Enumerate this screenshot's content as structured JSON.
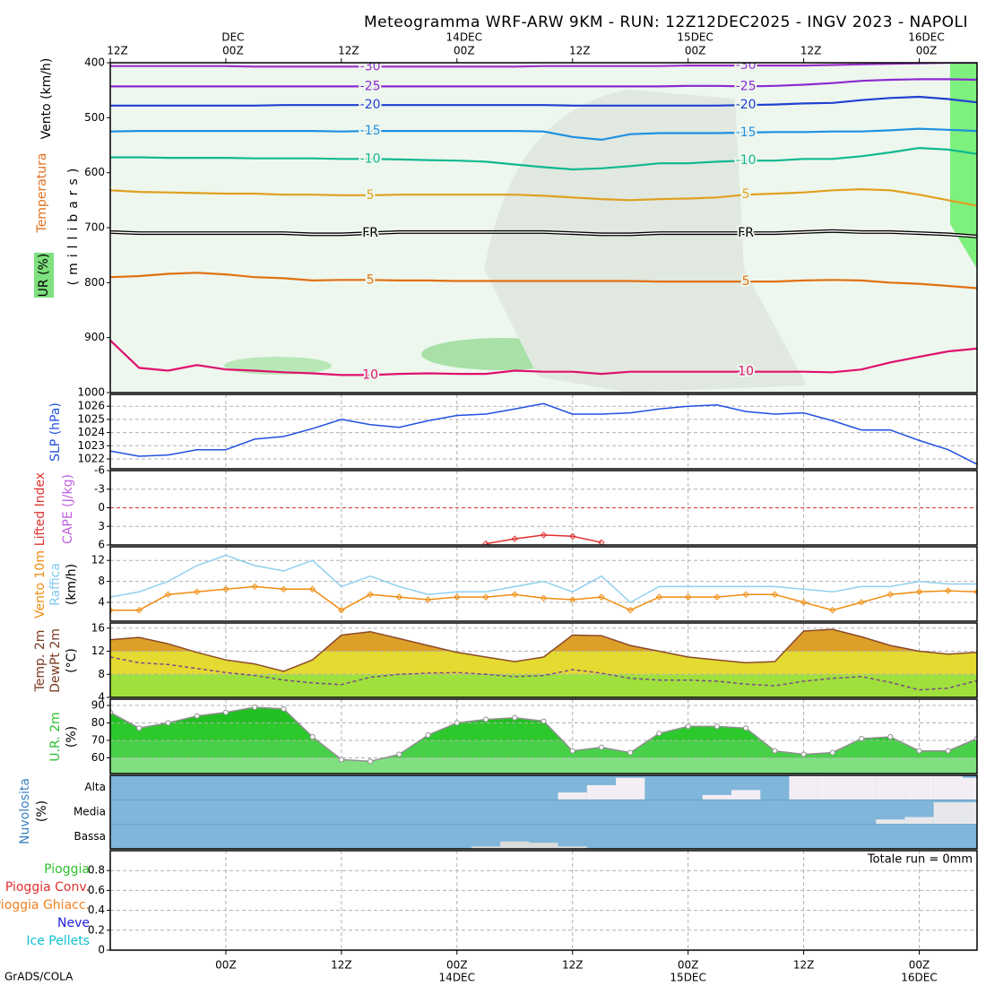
{
  "title": "Meteogramma WRF-ARW 9KM - RUN: 12Z12DEC2025 - INGV 2023 - NAPOLI",
  "footer": "GrADS/COLA",
  "time": {
    "x": [
      0,
      3,
      6,
      9,
      12,
      15,
      18,
      21,
      24,
      27,
      30,
      33,
      36,
      39,
      42,
      45,
      48,
      51,
      54,
      57,
      60,
      63,
      66,
      69,
      72,
      75,
      78,
      81,
      84,
      87,
      90
    ],
    "xlim": [
      0,
      90
    ],
    "xticks": [
      {
        "value": 12,
        "label": "00Z"
      },
      {
        "value": 24,
        "label": "12Z"
      },
      {
        "value": 36,
        "label": "00Z",
        "date": "14DEC"
      },
      {
        "value": 48,
        "label": "12Z"
      },
      {
        "value": 60,
        "label": "00Z",
        "date": "15DEC"
      },
      {
        "value": 72,
        "label": "12Z"
      },
      {
        "value": 84,
        "label": "00Z",
        "date": "16DEC"
      }
    ],
    "top_xticks": [
      {
        "value": 0,
        "label": "12Z"
      },
      {
        "value": 12,
        "label": "00Z",
        "date": "DEC"
      },
      {
        "value": 24,
        "label": "12Z"
      },
      {
        "value": 36,
        "label": "00Z",
        "date": "14DEC"
      },
      {
        "value": 48,
        "label": "12Z"
      },
      {
        "value": 60,
        "label": "00Z",
        "date": "15DEC"
      },
      {
        "value": 72,
        "label": "12Z"
      },
      {
        "value": 84,
        "label": "00Z",
        "date": "16DEC"
      }
    ]
  },
  "chart_data": [
    {
      "type": "isotherm",
      "ylabels": [
        {
          "text": "Vento (km/h)",
          "color": "#000000"
        },
        {
          "text": "Temperatura",
          "color": "#e07020"
        },
        {
          "text": "UR (%)",
          "color": "#000000"
        },
        {
          "text": "(millibars)",
          "color": "#000000"
        }
      ],
      "ylim": [
        1000,
        400
      ],
      "yticks": [
        400,
        500,
        600,
        700,
        800,
        900,
        1000
      ],
      "background": "#eef7ee",
      "series": [
        {
          "name": "-30",
          "color": "#9a30c8",
          "values": [
            406,
            406,
            406,
            406,
            406,
            407,
            407,
            407,
            407,
            407,
            407,
            407,
            407,
            407,
            407,
            406,
            406,
            406,
            406,
            406,
            405,
            405,
            405,
            405,
            405,
            404,
            403,
            402,
            401,
            400,
            400
          ]
        },
        {
          "name": "-25",
          "color": "#8a2ad0",
          "values": [
            443,
            443,
            443,
            443,
            443,
            443,
            443,
            443,
            443,
            443,
            443,
            443,
            443,
            443,
            443,
            443,
            443,
            443,
            443,
            443,
            442,
            442,
            443,
            442,
            440,
            437,
            433,
            431,
            430,
            430,
            431
          ]
        },
        {
          "name": "-20",
          "color": "#2040d0",
          "values": [
            478,
            478,
            478,
            478,
            478,
            478,
            477,
            477,
            477,
            477,
            477,
            477,
            477,
            477,
            477,
            477,
            478,
            478,
            478,
            478,
            478,
            478,
            477,
            476,
            474,
            473,
            468,
            464,
            462,
            466,
            472
          ]
        },
        {
          "name": "-15",
          "color": "#1e90e0",
          "values": [
            525,
            524,
            524,
            524,
            524,
            524,
            524,
            524,
            525,
            524,
            524,
            524,
            524,
            524,
            524,
            525,
            535,
            540,
            530,
            528,
            528,
            528,
            527,
            526,
            526,
            525,
            525,
            523,
            520,
            522,
            524
          ]
        },
        {
          "name": "-10",
          "color": "#10b890",
          "values": [
            572,
            572,
            573,
            573,
            573,
            574,
            574,
            574,
            575,
            575,
            576,
            577,
            578,
            580,
            585,
            590,
            594,
            592,
            588,
            583,
            583,
            580,
            578,
            578,
            575,
            575,
            570,
            563,
            555,
            558,
            566
          ]
        },
        {
          "name": "5",
          "color": "#e0a020",
          "values": [
            632,
            635,
            636,
            637,
            638,
            638,
            640,
            640,
            641,
            641,
            640,
            640,
            640,
            640,
            640,
            642,
            645,
            648,
            650,
            648,
            647,
            645,
            640,
            638,
            636,
            632,
            630,
            632,
            640,
            650,
            660
          ]
        },
        {
          "name": "FR",
          "color": "#000000",
          "double": true,
          "values": [
            708,
            710,
            710,
            710,
            710,
            710,
            710,
            712,
            712,
            710,
            708,
            708,
            708,
            708,
            708,
            708,
            710,
            712,
            712,
            710,
            710,
            710,
            710,
            710,
            708,
            706,
            708,
            708,
            710,
            712,
            716
          ]
        },
        {
          "name": "5",
          "color": "#e07010",
          "values": [
            790,
            788,
            784,
            782,
            785,
            790,
            792,
            796,
            795,
            795,
            796,
            796,
            797,
            797,
            797,
            797,
            797,
            797,
            797,
            798,
            798,
            798,
            798,
            798,
            796,
            795,
            796,
            800,
            802,
            806,
            810
          ]
        },
        {
          "name": "10",
          "color": "#e0106e",
          "values": [
            905,
            955,
            960,
            950,
            958,
            960,
            963,
            965,
            968,
            968,
            966,
            965,
            966,
            966,
            960,
            962,
            962,
            966,
            962,
            962,
            962,
            962,
            962,
            962,
            962,
            963,
            958,
            945,
            935,
            925,
            920
          ]
        }
      ]
    },
    {
      "type": "line",
      "grid": true,
      "ylabels": [
        {
          "text": "SLP (hPa)",
          "color": "#2050e0"
        }
      ],
      "ylim": [
        1021.25,
        1026.9
      ],
      "yticks": [
        1022,
        1023,
        1024,
        1025,
        1026
      ],
      "series": [
        {
          "color": "#2050e0",
          "values": [
            1022.6,
            1022.2,
            1022.3,
            1022.7,
            1022.7,
            1023.5,
            1023.7,
            1024.3,
            1025.0,
            1024.6,
            1024.4,
            1024.9,
            1025.3,
            1025.4,
            1025.8,
            1026.2,
            1025.4,
            1025.4,
            1025.5,
            1025.8,
            1026.0,
            1026.1,
            1025.6,
            1025.4,
            1025.5,
            1024.9,
            1024.2,
            1024.2,
            1023.4,
            1022.7,
            1021.6
          ]
        }
      ]
    },
    {
      "type": "line",
      "grid": true,
      "ylabels": [
        {
          "text": "Lifted Index",
          "color": "#e03030"
        },
        {
          "text": "CAPE (J/kg)",
          "color": "#c060e0"
        }
      ],
      "ylim": [
        6,
        -6
      ],
      "yticks": [
        -6,
        -3,
        0,
        3,
        6
      ],
      "reference_line": 0,
      "reference_color": "#e03030",
      "series": [
        {
          "color": "#e03030",
          "marker": "diamond",
          "values": [
            null,
            null,
            null,
            null,
            null,
            null,
            null,
            null,
            null,
            null,
            null,
            null,
            null,
            5.8,
            5.0,
            4.4,
            4.6,
            5.6,
            null,
            null,
            null,
            null,
            null,
            null,
            null,
            null,
            null,
            null,
            null,
            null,
            null
          ]
        }
      ]
    },
    {
      "type": "line",
      "grid": true,
      "ylabels": [
        {
          "text": "Vento 10m",
          "color": "#f08c10"
        },
        {
          "text": "Raffica",
          "color": "#80c8f0"
        },
        {
          "text": "(km/h)",
          "color": "#000000"
        }
      ],
      "ylim": [
        0.4,
        14.6
      ],
      "yticks": [
        4,
        8,
        12
      ],
      "series": [
        {
          "color": "#90d0f0",
          "values": [
            5.0,
            6.0,
            8.0,
            11.0,
            13.0,
            11.0,
            10.0,
            12.0,
            7.0,
            9.0,
            7.0,
            5.5,
            6.0,
            6.0,
            7.0,
            8.0,
            6.0,
            9.0,
            4.0,
            7.0,
            7.0,
            7.0,
            7.0,
            7.0,
            6.5,
            6.0,
            7.0,
            7.0,
            8.0,
            7.5,
            7.5
          ]
        },
        {
          "color": "#f08c10",
          "marker": "diamond",
          "values": [
            2.5,
            2.5,
            5.5,
            6.0,
            6.5,
            7.0,
            6.5,
            6.5,
            2.5,
            5.5,
            5.0,
            4.5,
            5.0,
            5.0,
            5.5,
            4.8,
            4.5,
            5.0,
            2.5,
            5.0,
            5.0,
            5.0,
            5.5,
            5.5,
            4.0,
            2.5,
            4.0,
            5.5,
            6.0,
            6.2,
            6.0
          ]
        }
      ]
    },
    {
      "type": "area",
      "grid": true,
      "ylabels": [
        {
          "text": "Temp. 2m",
          "color": "#7a3a20"
        },
        {
          "text": "DewPt 2m",
          "color": "#7a3a20"
        },
        {
          "text": "(°C)",
          "color": "#000000"
        }
      ],
      "ylim": [
        4,
        16.9
      ],
      "yticks": [
        4,
        8,
        12,
        16
      ],
      "band_colors": [
        "#9fe03c",
        "#e4da32",
        "#dca028",
        "#dca028"
      ],
      "series": [
        {
          "color": "#8b4a2a",
          "values": [
            14.0,
            14.4,
            13.3,
            11.8,
            10.5,
            9.8,
            8.5,
            10.5,
            14.8,
            15.4,
            14.2,
            13.0,
            11.8,
            11.0,
            10.2,
            11.0,
            14.8,
            14.7,
            13.0,
            12.0,
            11.0,
            10.5,
            10.0,
            10.2,
            15.5,
            15.8,
            14.5,
            13.0,
            12.0,
            11.5,
            11.8
          ]
        },
        {
          "color": "#7a4a8a",
          "dashed": true,
          "values": [
            11.0,
            10.0,
            9.7,
            9.0,
            8.3,
            7.8,
            7.0,
            6.5,
            6.2,
            7.5,
            8.0,
            8.2,
            8.3,
            8.0,
            7.6,
            7.8,
            8.8,
            8.2,
            7.3,
            7.0,
            7.0,
            6.8,
            6.3,
            6.0,
            6.8,
            7.3,
            7.6,
            6.6,
            5.3,
            5.6,
            6.9
          ]
        }
      ]
    },
    {
      "type": "area",
      "grid": true,
      "ylabels": [
        {
          "text": "U.R. 2m",
          "color": "#30c030"
        },
        {
          "text": "(%)",
          "color": "#000000"
        }
      ],
      "ylim": [
        51,
        93.6
      ],
      "yticks": [
        60,
        70,
        80,
        90
      ],
      "band_colors": [
        "#80e080",
        "#48d048",
        "#2cc82c",
        "#22c022",
        "#22c022"
      ],
      "series": [
        {
          "color": "#909090",
          "marker": "circle",
          "values": [
            86,
            77,
            80,
            84,
            86,
            89,
            88,
            72,
            59,
            58,
            62,
            73,
            80,
            82,
            83,
            81,
            64,
            66,
            63,
            74,
            78,
            78,
            77,
            64,
            62,
            63,
            71,
            72,
            64,
            64,
            71
          ]
        }
      ]
    },
    {
      "type": "cloud",
      "ylabels": [
        {
          "text": "Nuvolosita",
          "color": "#3a80c0"
        },
        {
          "text": "(%)",
          "color": "#000000"
        }
      ],
      "background": "#7fb6da",
      "layers": [
        {
          "name": "Alta",
          "color": "#f4eef4",
          "values": [
            0,
            0,
            0,
            0,
            0,
            0,
            0,
            0,
            0,
            0,
            0,
            0,
            0,
            0,
            0,
            0,
            30,
            60,
            90,
            0,
            0,
            20,
            40,
            0,
            100,
            100,
            100,
            100,
            100,
            100,
            90
          ]
        },
        {
          "name": "Media",
          "color": "#e8e8ec",
          "values": [
            0,
            0,
            0,
            0,
            0,
            0,
            0,
            0,
            0,
            0,
            0,
            0,
            0,
            0,
            0,
            0,
            0,
            0,
            0,
            0,
            0,
            0,
            0,
            0,
            0,
            0,
            0,
            20,
            30,
            90,
            90
          ]
        },
        {
          "name": "Bassa",
          "color": "#dcdcdc",
          "values": [
            0,
            0,
            0,
            0,
            0,
            0,
            0,
            0,
            0,
            0,
            0,
            0,
            0,
            10,
            30,
            25,
            10,
            0,
            0,
            0,
            0,
            0,
            0,
            0,
            0,
            0,
            0,
            0,
            0,
            0,
            0
          ]
        }
      ]
    },
    {
      "type": "precip",
      "grid": true,
      "ylim": [
        0,
        1
      ],
      "yticks": [
        0,
        0.2,
        0.4,
        0.6,
        0.8
      ],
      "legend": [
        {
          "name": "Pioggia",
          "color": "#30c030"
        },
        {
          "name": "Pioggia Conv.",
          "color": "#e03030"
        },
        {
          "name": "Pioggia Ghiacc.",
          "color": "#f08020"
        },
        {
          "name": "Neve",
          "color": "#2020e0"
        },
        {
          "name": "Ice Pellets",
          "color": "#10c0d0"
        }
      ],
      "annotation": "Totale run = 0mm"
    }
  ]
}
